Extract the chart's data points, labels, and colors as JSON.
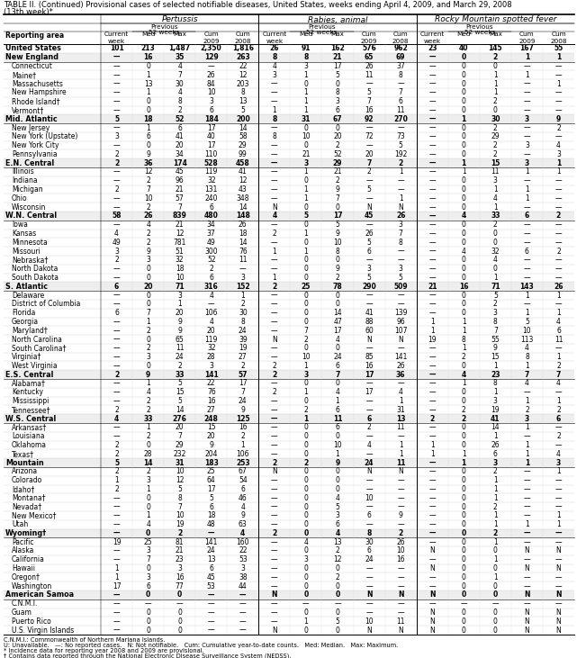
{
  "title_line1": "TABLE II. (Continued) Provisional cases of selected notifiable diseases, United States, weeks ending April 4, 2009, and March 29, 2008",
  "title_line2": "(13th week)*",
  "rows": [
    [
      "United States",
      "101",
      "213",
      "1,487",
      "2,350",
      "1,816",
      "26",
      "91",
      "162",
      "576",
      "962",
      "23",
      "40",
      "145",
      "167",
      "55"
    ],
    [
      "New England",
      "—",
      "16",
      "35",
      "129",
      "263",
      "8",
      "8",
      "21",
      "65",
      "69",
      "—",
      "0",
      "2",
      "1",
      "1"
    ],
    [
      "Connecticut",
      "—",
      "0",
      "4",
      "—",
      "22",
      "4",
      "3",
      "17",
      "26",
      "37",
      "—",
      "0",
      "0",
      "—",
      "—"
    ],
    [
      "Maine†",
      "—",
      "1",
      "7",
      "26",
      "12",
      "3",
      "1",
      "5",
      "11",
      "8",
      "—",
      "0",
      "1",
      "1",
      "—"
    ],
    [
      "Massachusetts",
      "—",
      "13",
      "30",
      "84",
      "203",
      "—",
      "0",
      "0",
      "—",
      "—",
      "—",
      "0",
      "1",
      "—",
      "1"
    ],
    [
      "New Hampshire",
      "—",
      "1",
      "4",
      "10",
      "8",
      "—",
      "1",
      "8",
      "5",
      "7",
      "—",
      "0",
      "1",
      "—",
      "—"
    ],
    [
      "Rhode Island†",
      "—",
      "0",
      "8",
      "3",
      "13",
      "—",
      "1",
      "3",
      "7",
      "6",
      "—",
      "0",
      "2",
      "—",
      "—"
    ],
    [
      "Vermont†",
      "—",
      "0",
      "2",
      "6",
      "5",
      "1",
      "1",
      "6",
      "16",
      "11",
      "—",
      "0",
      "0",
      "—",
      "—"
    ],
    [
      "Mid. Atlantic",
      "5",
      "18",
      "52",
      "184",
      "200",
      "8",
      "31",
      "67",
      "92",
      "270",
      "—",
      "1",
      "30",
      "3",
      "9"
    ],
    [
      "New Jersey",
      "—",
      "1",
      "6",
      "17",
      "14",
      "—",
      "0",
      "0",
      "—",
      "—",
      "—",
      "0",
      "2",
      "—",
      "2"
    ],
    [
      "New York (Upstate)",
      "3",
      "6",
      "41",
      "40",
      "58",
      "8",
      "10",
      "20",
      "72",
      "73",
      "—",
      "0",
      "29",
      "—",
      "—"
    ],
    [
      "New York City",
      "—",
      "0",
      "20",
      "17",
      "29",
      "—",
      "0",
      "2",
      "—",
      "5",
      "—",
      "0",
      "2",
      "3",
      "4"
    ],
    [
      "Pennsylvania",
      "2",
      "9",
      "34",
      "110",
      "99",
      "—",
      "21",
      "52",
      "20",
      "192",
      "—",
      "0",
      "2",
      "—",
      "3"
    ],
    [
      "E.N. Central",
      "2",
      "36",
      "174",
      "528",
      "458",
      "—",
      "3",
      "29",
      "7",
      "2",
      "—",
      "1",
      "15",
      "3",
      "1"
    ],
    [
      "Illinois",
      "—",
      "12",
      "45",
      "119",
      "41",
      "—",
      "1",
      "21",
      "2",
      "1",
      "—",
      "1",
      "11",
      "1",
      "1"
    ],
    [
      "Indiana",
      "—",
      "2",
      "96",
      "32",
      "12",
      "—",
      "0",
      "2",
      "—",
      "—",
      "—",
      "0",
      "3",
      "—",
      "—"
    ],
    [
      "Michigan",
      "2",
      "7",
      "21",
      "131",
      "43",
      "—",
      "1",
      "9",
      "5",
      "—",
      "—",
      "0",
      "1",
      "1",
      "—"
    ],
    [
      "Ohio",
      "—",
      "10",
      "57",
      "240",
      "348",
      "—",
      "1",
      "7",
      "—",
      "1",
      "—",
      "0",
      "4",
      "1",
      "—"
    ],
    [
      "Wisconsin",
      "—",
      "2",
      "7",
      "6",
      "14",
      "N",
      "0",
      "0",
      "N",
      "N",
      "—",
      "0",
      "1",
      "—",
      "—"
    ],
    [
      "W.N. Central",
      "58",
      "26",
      "839",
      "480",
      "148",
      "4",
      "5",
      "17",
      "45",
      "26",
      "—",
      "4",
      "33",
      "6",
      "2"
    ],
    [
      "Iowa",
      "—",
      "4",
      "21",
      "34",
      "26",
      "—",
      "0",
      "5",
      "—",
      "3",
      "—",
      "0",
      "2",
      "—",
      "—"
    ],
    [
      "Kansas",
      "4",
      "2",
      "12",
      "37",
      "18",
      "2",
      "1",
      "9",
      "26",
      "7",
      "—",
      "0",
      "0",
      "—",
      "—"
    ],
    [
      "Minnesota",
      "49",
      "2",
      "781",
      "49",
      "14",
      "—",
      "0",
      "10",
      "5",
      "8",
      "—",
      "0",
      "0",
      "—",
      "—"
    ],
    [
      "Missouri",
      "3",
      "9",
      "51",
      "300",
      "76",
      "1",
      "1",
      "8",
      "6",
      "—",
      "—",
      "4",
      "32",
      "6",
      "2"
    ],
    [
      "Nebraska†",
      "2",
      "3",
      "32",
      "52",
      "11",
      "—",
      "0",
      "0",
      "—",
      "—",
      "—",
      "0",
      "4",
      "—",
      "—"
    ],
    [
      "North Dakota",
      "—",
      "0",
      "18",
      "2",
      "—",
      "—",
      "0",
      "9",
      "3",
      "3",
      "—",
      "0",
      "0",
      "—",
      "—"
    ],
    [
      "South Dakota",
      "—",
      "0",
      "10",
      "6",
      "3",
      "1",
      "0",
      "2",
      "5",
      "5",
      "—",
      "0",
      "1",
      "—",
      "—"
    ],
    [
      "S. Atlantic",
      "6",
      "20",
      "71",
      "316",
      "152",
      "2",
      "25",
      "78",
      "290",
      "509",
      "21",
      "16",
      "71",
      "143",
      "26"
    ],
    [
      "Delaware",
      "—",
      "0",
      "3",
      "4",
      "1",
      "—",
      "0",
      "0",
      "—",
      "—",
      "—",
      "0",
      "5",
      "1",
      "1"
    ],
    [
      "District of Columbia",
      "—",
      "0",
      "1",
      "—",
      "2",
      "—",
      "0",
      "0",
      "—",
      "—",
      "—",
      "0",
      "2",
      "—",
      "—"
    ],
    [
      "Florida",
      "6",
      "7",
      "20",
      "106",
      "30",
      "—",
      "0",
      "14",
      "41",
      "139",
      "—",
      "0",
      "3",
      "1",
      "1"
    ],
    [
      "Georgia",
      "—",
      "1",
      "9",
      "4",
      "8",
      "—",
      "0",
      "47",
      "88",
      "96",
      "1",
      "1",
      "8",
      "5",
      "4"
    ],
    [
      "Maryland†",
      "—",
      "2",
      "9",
      "20",
      "24",
      "—",
      "7",
      "17",
      "60",
      "107",
      "1",
      "1",
      "7",
      "10",
      "6"
    ],
    [
      "North Carolina",
      "—",
      "0",
      "65",
      "119",
      "39",
      "N",
      "2",
      "4",
      "N",
      "N",
      "19",
      "8",
      "55",
      "113",
      "11"
    ],
    [
      "South Carolina†",
      "—",
      "2",
      "11",
      "32",
      "19",
      "—",
      "0",
      "0",
      "—",
      "—",
      "—",
      "1",
      "9",
      "4",
      "—"
    ],
    [
      "Virginia†",
      "—",
      "3",
      "24",
      "28",
      "27",
      "—",
      "10",
      "24",
      "85",
      "141",
      "—",
      "2",
      "15",
      "8",
      "1"
    ],
    [
      "West Virginia",
      "—",
      "0",
      "2",
      "3",
      "2",
      "2",
      "1",
      "6",
      "16",
      "26",
      "—",
      "0",
      "1",
      "1",
      "2"
    ],
    [
      "E.S. Central",
      "2",
      "9",
      "33",
      "141",
      "57",
      "2",
      "3",
      "7",
      "17",
      "36",
      "—",
      "4",
      "23",
      "7",
      "7"
    ],
    [
      "Alabama†",
      "—",
      "1",
      "5",
      "22",
      "17",
      "—",
      "0",
      "0",
      "—",
      "—",
      "—",
      "1",
      "8",
      "4",
      "4"
    ],
    [
      "Kentucky",
      "—",
      "4",
      "15",
      "76",
      "7",
      "2",
      "1",
      "4",
      "17",
      "4",
      "—",
      "0",
      "1",
      "—",
      "—"
    ],
    [
      "Mississippi",
      "—",
      "2",
      "5",
      "16",
      "24",
      "—",
      "0",
      "1",
      "—",
      "1",
      "—",
      "0",
      "3",
      "1",
      "1"
    ],
    [
      "Tennessee†",
      "2",
      "2",
      "14",
      "27",
      "9",
      "—",
      "2",
      "6",
      "—",
      "31",
      "—",
      "2",
      "19",
      "2",
      "2"
    ],
    [
      "W.S. Central",
      "4",
      "33",
      "276",
      "248",
      "125",
      "—",
      "1",
      "11",
      "6",
      "13",
      "2",
      "2",
      "41",
      "3",
      "6"
    ],
    [
      "Arkansas†",
      "—",
      "1",
      "20",
      "15",
      "16",
      "—",
      "0",
      "6",
      "2",
      "11",
      "—",
      "0",
      "14",
      "1",
      "—"
    ],
    [
      "Louisiana",
      "—",
      "2",
      "7",
      "20",
      "2",
      "—",
      "0",
      "0",
      "—",
      "—",
      "—",
      "0",
      "1",
      "—",
      "2"
    ],
    [
      "Oklahoma",
      "2",
      "0",
      "29",
      "9",
      "1",
      "—",
      "0",
      "10",
      "4",
      "1",
      "1",
      "0",
      "26",
      "1",
      "—"
    ],
    [
      "Texas†",
      "2",
      "28",
      "232",
      "204",
      "106",
      "—",
      "0",
      "1",
      "—",
      "1",
      "1",
      "1",
      "6",
      "1",
      "4"
    ],
    [
      "Mountain",
      "5",
      "14",
      "31",
      "183",
      "253",
      "2",
      "2",
      "9",
      "24",
      "11",
      "—",
      "1",
      "3",
      "1",
      "3"
    ],
    [
      "Arizona",
      "2",
      "2",
      "10",
      "25",
      "67",
      "N",
      "0",
      "0",
      "N",
      "N",
      "—",
      "0",
      "2",
      "—",
      "1"
    ],
    [
      "Colorado",
      "1",
      "3",
      "12",
      "64",
      "54",
      "—",
      "0",
      "0",
      "—",
      "—",
      "—",
      "0",
      "1",
      "—",
      "—"
    ],
    [
      "Idaho†",
      "2",
      "1",
      "5",
      "17",
      "6",
      "—",
      "0",
      "0",
      "—",
      "—",
      "—",
      "0",
      "1",
      "—",
      "—"
    ],
    [
      "Montana†",
      "—",
      "0",
      "8",
      "5",
      "46",
      "—",
      "0",
      "4",
      "10",
      "—",
      "—",
      "0",
      "1",
      "—",
      "—"
    ],
    [
      "Nevada†",
      "—",
      "0",
      "7",
      "6",
      "4",
      "—",
      "0",
      "5",
      "—",
      "—",
      "—",
      "0",
      "2",
      "—",
      "—"
    ],
    [
      "New Mexico†",
      "—",
      "1",
      "10",
      "18",
      "9",
      "—",
      "0",
      "3",
      "6",
      "9",
      "—",
      "0",
      "1",
      "—",
      "1"
    ],
    [
      "Utah",
      "—",
      "4",
      "19",
      "48",
      "63",
      "—",
      "0",
      "6",
      "—",
      "—",
      "—",
      "0",
      "1",
      "1",
      "1"
    ],
    [
      "Wyoming†",
      "—",
      "0",
      "2",
      "—",
      "4",
      "2",
      "0",
      "4",
      "8",
      "2",
      "—",
      "0",
      "2",
      "—",
      "—"
    ],
    [
      "Pacific",
      "19",
      "25",
      "81",
      "141",
      "160",
      "—",
      "4",
      "13",
      "30",
      "26",
      "—",
      "0",
      "1",
      "—",
      "—"
    ],
    [
      "Alaska",
      "—",
      "3",
      "21",
      "24",
      "22",
      "—",
      "0",
      "2",
      "6",
      "10",
      "N",
      "0",
      "0",
      "N",
      "N"
    ],
    [
      "California",
      "—",
      "7",
      "23",
      "13",
      "53",
      "—",
      "3",
      "12",
      "24",
      "16",
      "—",
      "0",
      "1",
      "—",
      "—"
    ],
    [
      "Hawaii",
      "1",
      "0",
      "3",
      "6",
      "3",
      "—",
      "0",
      "0",
      "—",
      "—",
      "N",
      "0",
      "0",
      "N",
      "N"
    ],
    [
      "Oregon†",
      "1",
      "3",
      "16",
      "45",
      "38",
      "—",
      "0",
      "2",
      "—",
      "—",
      "—",
      "0",
      "1",
      "—",
      "—"
    ],
    [
      "Washington",
      "17",
      "6",
      "77",
      "53",
      "44",
      "—",
      "0",
      "0",
      "—",
      "—",
      "—",
      "0",
      "0",
      "—",
      "—"
    ],
    [
      "American Samoa",
      "—",
      "0",
      "0",
      "—",
      "—",
      "N",
      "0",
      "0",
      "N",
      "N",
      "N",
      "0",
      "0",
      "N",
      "N"
    ],
    [
      "C.N.M.I.",
      "—",
      "—",
      "—",
      "—",
      "—",
      "—",
      "—",
      "—",
      "—",
      "—",
      "—",
      "—",
      "—",
      "—",
      "—"
    ],
    [
      "Guam",
      "—",
      "0",
      "0",
      "—",
      "—",
      "—",
      "0",
      "0",
      "—",
      "—",
      "N",
      "0",
      "0",
      "N",
      "N"
    ],
    [
      "Puerto Rico",
      "—",
      "0",
      "0",
      "—",
      "—",
      "—",
      "1",
      "5",
      "10",
      "11",
      "N",
      "0",
      "0",
      "N",
      "N"
    ],
    [
      "U.S. Virgin Islands",
      "—",
      "0",
      "0",
      "—",
      "—",
      "N",
      "0",
      "0",
      "N",
      "N",
      "N",
      "0",
      "0",
      "N",
      "N"
    ]
  ],
  "bold_rows": [
    0,
    1,
    8,
    13,
    19,
    27,
    37,
    42,
    47,
    55,
    62
  ],
  "footnotes": [
    "C.N.M.I.: Commonwealth of Northern Mariana Islands.",
    "U: Unavailable.   —: No reported cases.   N: Not notifiable.   Cum: Cumulative year-to-date counts.   Med: Median.   Max: Maximum.",
    "* Incidence data for reporting year 2008 and 2009 are provisional.",
    "† Contains data reported through the National Electronic Disease Surveillance System (NEDSS)."
  ]
}
